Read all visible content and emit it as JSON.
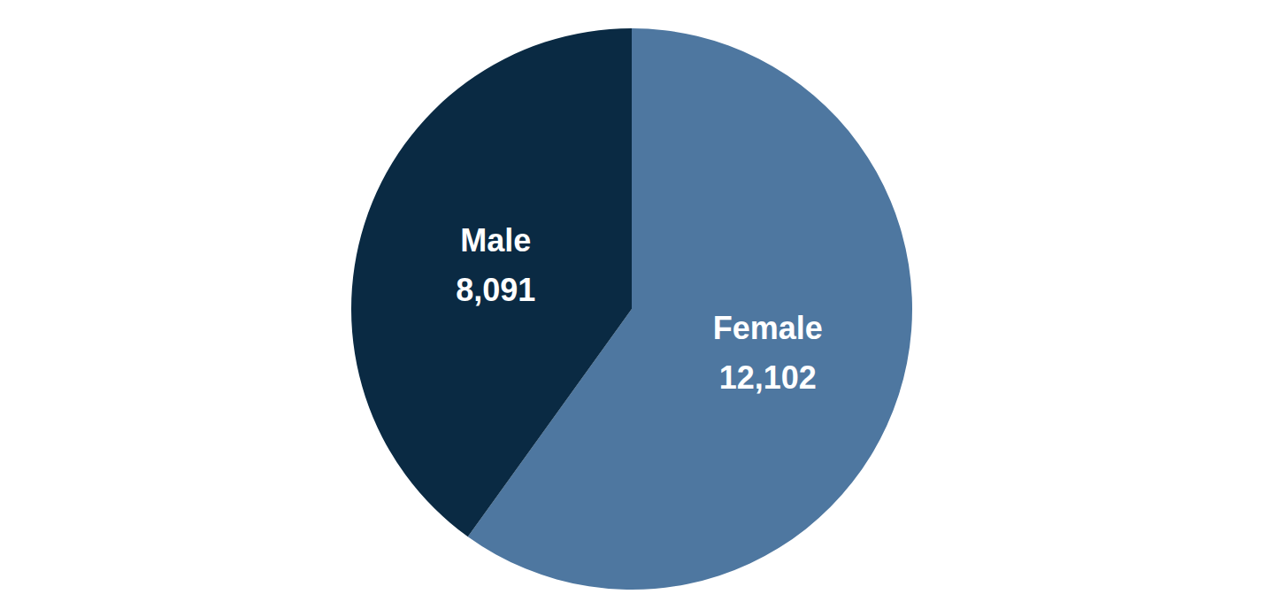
{
  "chart_data": {
    "type": "pie",
    "categories": [
      "Female",
      "Male"
    ],
    "values": [
      12102,
      8091
    ],
    "value_labels": [
      "12,102",
      "8,091"
    ],
    "colors": [
      "#4e77a0",
      "#0a2a43"
    ],
    "data_labels": true
  }
}
